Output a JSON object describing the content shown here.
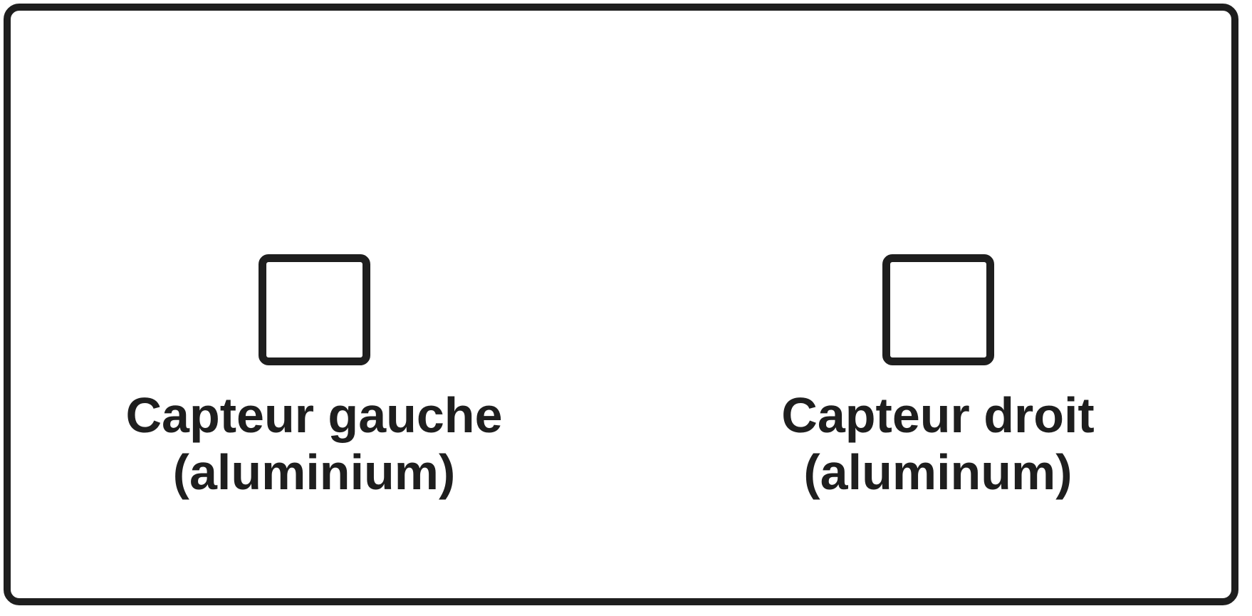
{
  "sensors": {
    "left": {
      "line1": "Capteur gauche",
      "line2": "(aluminium)"
    },
    "right": {
      "line1": "Capteur droit",
      "line2": "(aluminum)"
    }
  },
  "colors": {
    "stroke": "#1e1e1e",
    "background": "#ffffff"
  }
}
